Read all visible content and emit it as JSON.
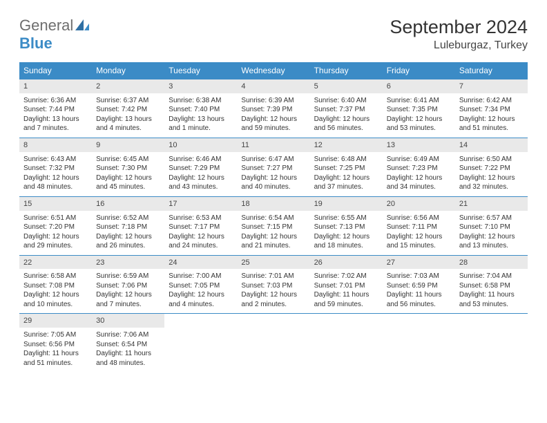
{
  "brand": {
    "general": "General",
    "blue": "Blue"
  },
  "title": "September 2024",
  "location": "Luleburgaz, Turkey",
  "header_bg": "#3b8bc6",
  "daynum_bg": "#e9e9e9",
  "week_border": "#3b8bc6",
  "dayHeaders": [
    "Sunday",
    "Monday",
    "Tuesday",
    "Wednesday",
    "Thursday",
    "Friday",
    "Saturday"
  ],
  "weeks": [
    [
      {
        "n": "1",
        "sr": "Sunrise: 6:36 AM",
        "ss": "Sunset: 7:44 PM",
        "dl1": "Daylight: 13 hours",
        "dl2": "and 7 minutes."
      },
      {
        "n": "2",
        "sr": "Sunrise: 6:37 AM",
        "ss": "Sunset: 7:42 PM",
        "dl1": "Daylight: 13 hours",
        "dl2": "and 4 minutes."
      },
      {
        "n": "3",
        "sr": "Sunrise: 6:38 AM",
        "ss": "Sunset: 7:40 PM",
        "dl1": "Daylight: 13 hours",
        "dl2": "and 1 minute."
      },
      {
        "n": "4",
        "sr": "Sunrise: 6:39 AM",
        "ss": "Sunset: 7:39 PM",
        "dl1": "Daylight: 12 hours",
        "dl2": "and 59 minutes."
      },
      {
        "n": "5",
        "sr": "Sunrise: 6:40 AM",
        "ss": "Sunset: 7:37 PM",
        "dl1": "Daylight: 12 hours",
        "dl2": "and 56 minutes."
      },
      {
        "n": "6",
        "sr": "Sunrise: 6:41 AM",
        "ss": "Sunset: 7:35 PM",
        "dl1": "Daylight: 12 hours",
        "dl2": "and 53 minutes."
      },
      {
        "n": "7",
        "sr": "Sunrise: 6:42 AM",
        "ss": "Sunset: 7:34 PM",
        "dl1": "Daylight: 12 hours",
        "dl2": "and 51 minutes."
      }
    ],
    [
      {
        "n": "8",
        "sr": "Sunrise: 6:43 AM",
        "ss": "Sunset: 7:32 PM",
        "dl1": "Daylight: 12 hours",
        "dl2": "and 48 minutes."
      },
      {
        "n": "9",
        "sr": "Sunrise: 6:45 AM",
        "ss": "Sunset: 7:30 PM",
        "dl1": "Daylight: 12 hours",
        "dl2": "and 45 minutes."
      },
      {
        "n": "10",
        "sr": "Sunrise: 6:46 AM",
        "ss": "Sunset: 7:29 PM",
        "dl1": "Daylight: 12 hours",
        "dl2": "and 43 minutes."
      },
      {
        "n": "11",
        "sr": "Sunrise: 6:47 AM",
        "ss": "Sunset: 7:27 PM",
        "dl1": "Daylight: 12 hours",
        "dl2": "and 40 minutes."
      },
      {
        "n": "12",
        "sr": "Sunrise: 6:48 AM",
        "ss": "Sunset: 7:25 PM",
        "dl1": "Daylight: 12 hours",
        "dl2": "and 37 minutes."
      },
      {
        "n": "13",
        "sr": "Sunrise: 6:49 AM",
        "ss": "Sunset: 7:23 PM",
        "dl1": "Daylight: 12 hours",
        "dl2": "and 34 minutes."
      },
      {
        "n": "14",
        "sr": "Sunrise: 6:50 AM",
        "ss": "Sunset: 7:22 PM",
        "dl1": "Daylight: 12 hours",
        "dl2": "and 32 minutes."
      }
    ],
    [
      {
        "n": "15",
        "sr": "Sunrise: 6:51 AM",
        "ss": "Sunset: 7:20 PM",
        "dl1": "Daylight: 12 hours",
        "dl2": "and 29 minutes."
      },
      {
        "n": "16",
        "sr": "Sunrise: 6:52 AM",
        "ss": "Sunset: 7:18 PM",
        "dl1": "Daylight: 12 hours",
        "dl2": "and 26 minutes."
      },
      {
        "n": "17",
        "sr": "Sunrise: 6:53 AM",
        "ss": "Sunset: 7:17 PM",
        "dl1": "Daylight: 12 hours",
        "dl2": "and 24 minutes."
      },
      {
        "n": "18",
        "sr": "Sunrise: 6:54 AM",
        "ss": "Sunset: 7:15 PM",
        "dl1": "Daylight: 12 hours",
        "dl2": "and 21 minutes."
      },
      {
        "n": "19",
        "sr": "Sunrise: 6:55 AM",
        "ss": "Sunset: 7:13 PM",
        "dl1": "Daylight: 12 hours",
        "dl2": "and 18 minutes."
      },
      {
        "n": "20",
        "sr": "Sunrise: 6:56 AM",
        "ss": "Sunset: 7:11 PM",
        "dl1": "Daylight: 12 hours",
        "dl2": "and 15 minutes."
      },
      {
        "n": "21",
        "sr": "Sunrise: 6:57 AM",
        "ss": "Sunset: 7:10 PM",
        "dl1": "Daylight: 12 hours",
        "dl2": "and 13 minutes."
      }
    ],
    [
      {
        "n": "22",
        "sr": "Sunrise: 6:58 AM",
        "ss": "Sunset: 7:08 PM",
        "dl1": "Daylight: 12 hours",
        "dl2": "and 10 minutes."
      },
      {
        "n": "23",
        "sr": "Sunrise: 6:59 AM",
        "ss": "Sunset: 7:06 PM",
        "dl1": "Daylight: 12 hours",
        "dl2": "and 7 minutes."
      },
      {
        "n": "24",
        "sr": "Sunrise: 7:00 AM",
        "ss": "Sunset: 7:05 PM",
        "dl1": "Daylight: 12 hours",
        "dl2": "and 4 minutes."
      },
      {
        "n": "25",
        "sr": "Sunrise: 7:01 AM",
        "ss": "Sunset: 7:03 PM",
        "dl1": "Daylight: 12 hours",
        "dl2": "and 2 minutes."
      },
      {
        "n": "26",
        "sr": "Sunrise: 7:02 AM",
        "ss": "Sunset: 7:01 PM",
        "dl1": "Daylight: 11 hours",
        "dl2": "and 59 minutes."
      },
      {
        "n": "27",
        "sr": "Sunrise: 7:03 AM",
        "ss": "Sunset: 6:59 PM",
        "dl1": "Daylight: 11 hours",
        "dl2": "and 56 minutes."
      },
      {
        "n": "28",
        "sr": "Sunrise: 7:04 AM",
        "ss": "Sunset: 6:58 PM",
        "dl1": "Daylight: 11 hours",
        "dl2": "and 53 minutes."
      }
    ],
    [
      {
        "n": "29",
        "sr": "Sunrise: 7:05 AM",
        "ss": "Sunset: 6:56 PM",
        "dl1": "Daylight: 11 hours",
        "dl2": "and 51 minutes."
      },
      {
        "n": "30",
        "sr": "Sunrise: 7:06 AM",
        "ss": "Sunset: 6:54 PM",
        "dl1": "Daylight: 11 hours",
        "dl2": "and 48 minutes."
      },
      null,
      null,
      null,
      null,
      null
    ]
  ]
}
